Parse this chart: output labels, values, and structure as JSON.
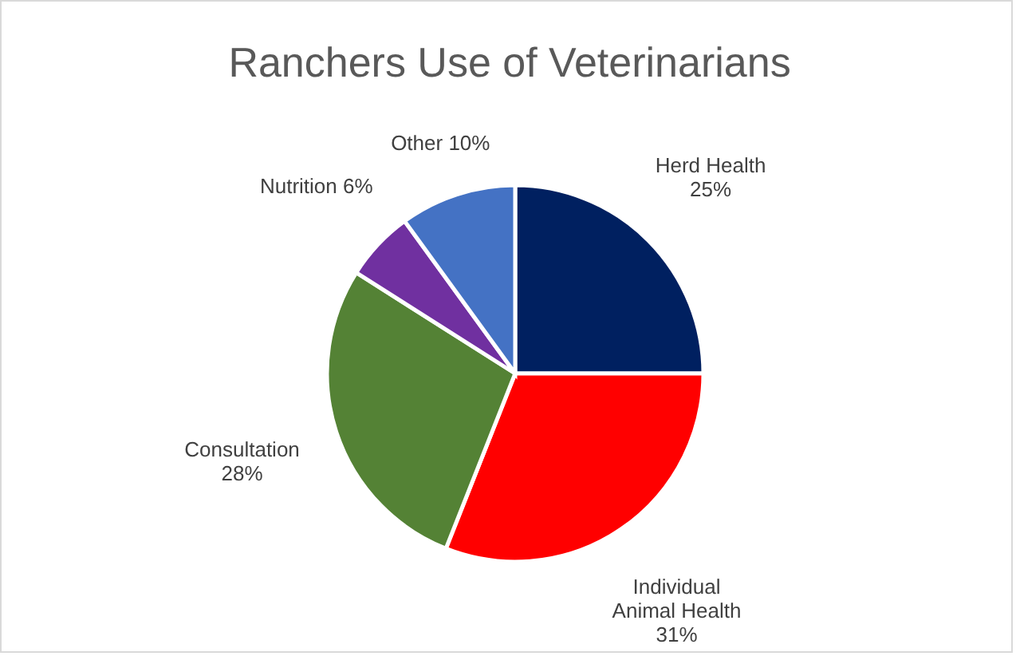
{
  "chart_data": {
    "type": "pie",
    "title": "Ranchers Use of Veterinarians",
    "categories": [
      "Herd Health",
      "Individual Animal Health",
      "Consultation",
      "Nutrition",
      "Other"
    ],
    "values": [
      25,
      31,
      28,
      6,
      10
    ],
    "colors": [
      "#002060",
      "#ff0000",
      "#548235",
      "#7030a0",
      "#4472c4"
    ],
    "value_labels": [
      "25%",
      "31%",
      "28%",
      "6%",
      "10%"
    ],
    "legend": false
  }
}
